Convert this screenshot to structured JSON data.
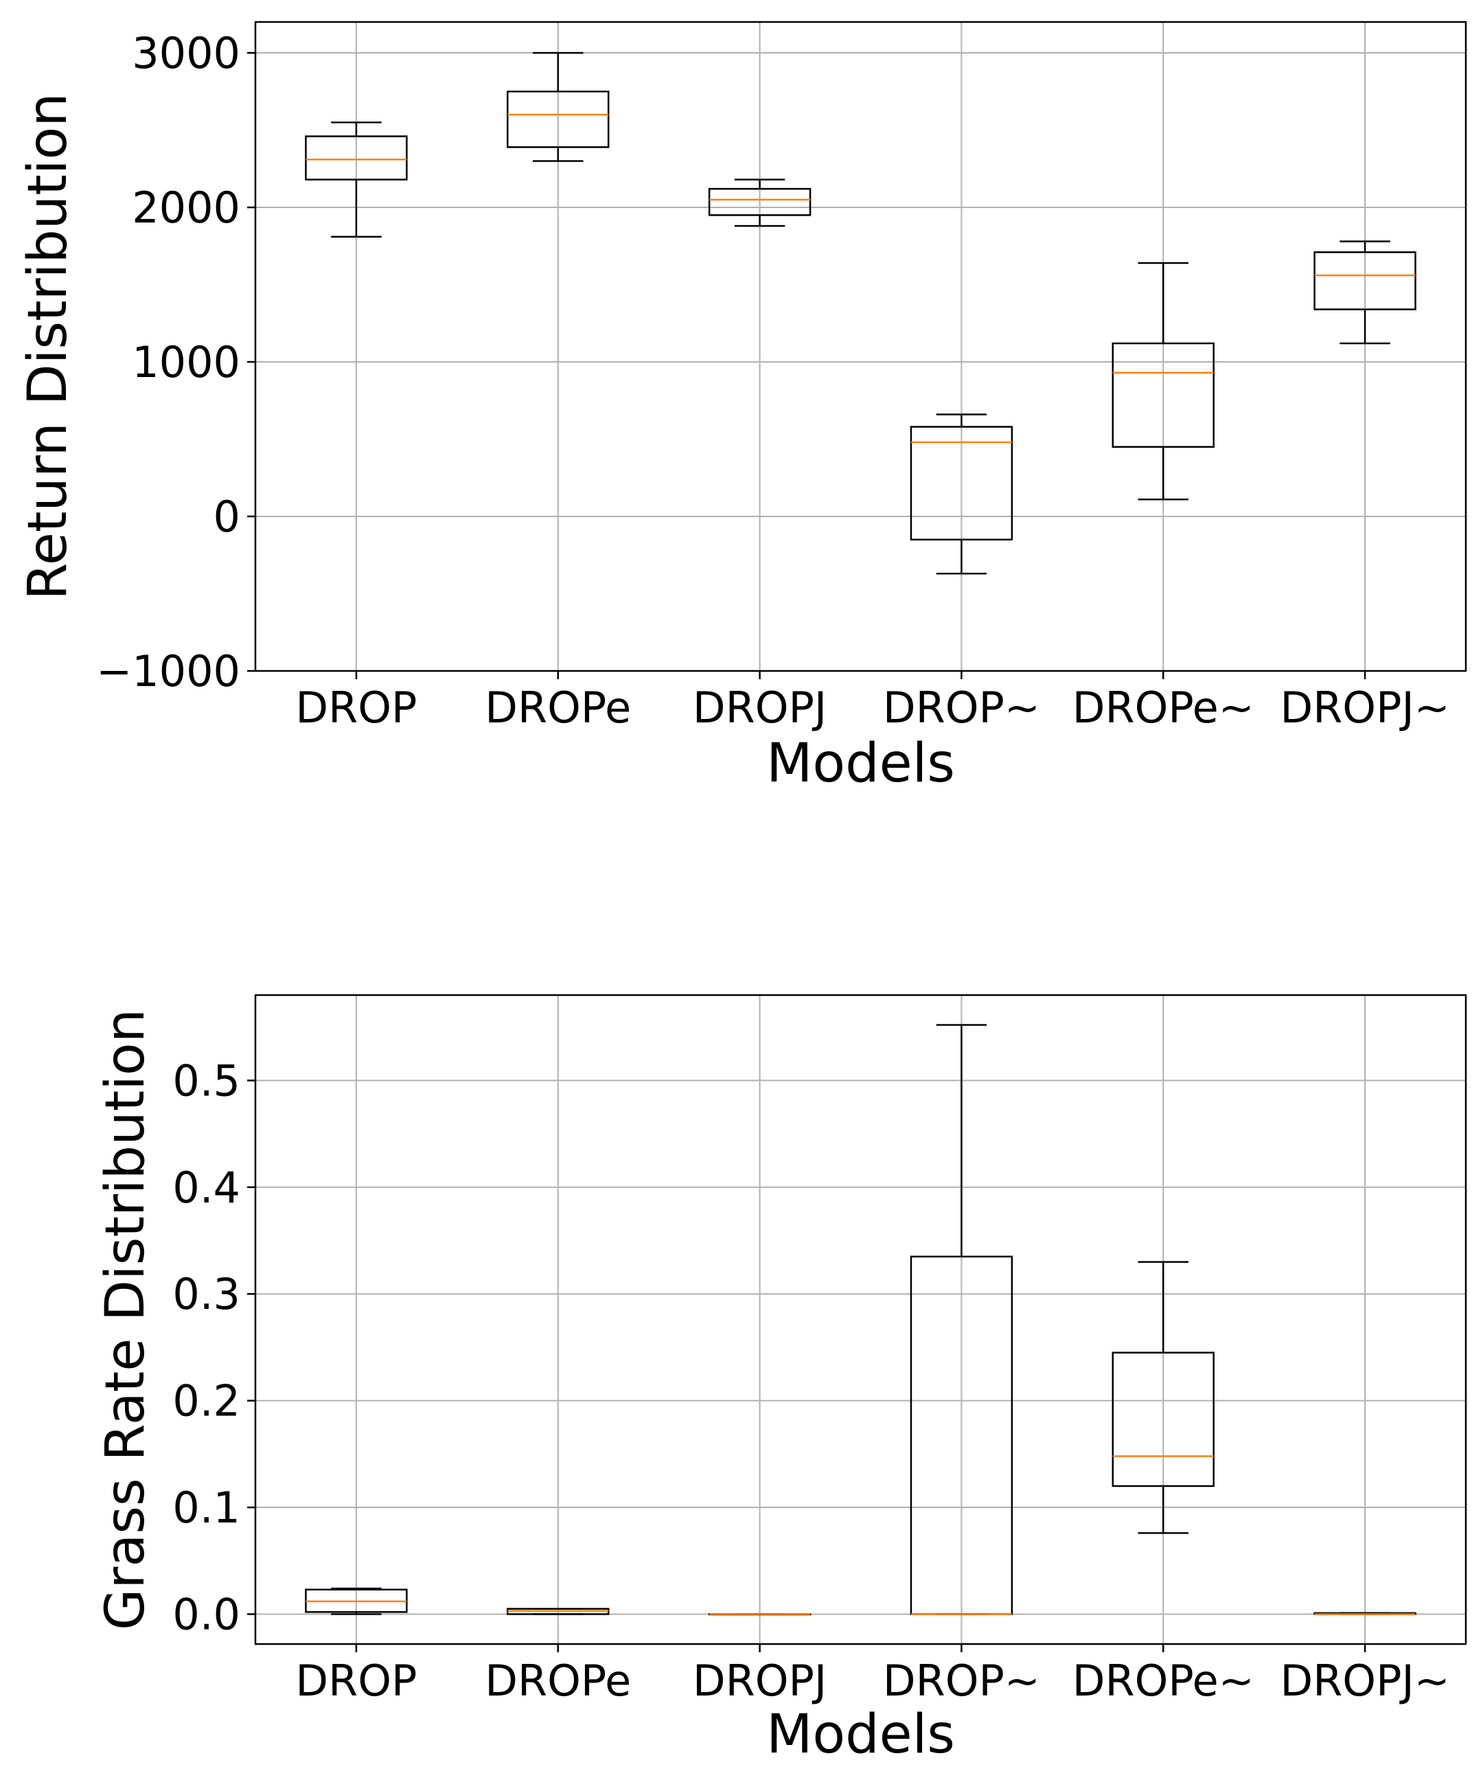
{
  "chart_data": [
    {
      "type": "box",
      "title": "",
      "xlabel": "Models",
      "ylabel": "Return Distribution",
      "categories": [
        "DROP",
        "DROPe",
        "DROPJ",
        "DROP~",
        "DROPe~",
        "DROPJ~"
      ],
      "ylim": [
        -1000,
        3200
      ],
      "yticks": [
        -1000,
        0,
        1000,
        2000,
        3000
      ],
      "ytick_labels": [
        "−1000",
        "0",
        "1000",
        "2000",
        "3000"
      ],
      "grid": true,
      "boxes": [
        {
          "whislo": 1810,
          "q1": 2180,
          "med": 2310,
          "q3": 2460,
          "whishi": 2550
        },
        {
          "whislo": 2300,
          "q1": 2390,
          "med": 2600,
          "q3": 2750,
          "whishi": 3000
        },
        {
          "whislo": 1880,
          "q1": 1950,
          "med": 2050,
          "q3": 2120,
          "whishi": 2180
        },
        {
          "whislo": -370,
          "q1": -150,
          "med": 480,
          "q3": 580,
          "whishi": 660
        },
        {
          "whislo": 110,
          "q1": 450,
          "med": 930,
          "q3": 1120,
          "whishi": 1640
        },
        {
          "whislo": 1120,
          "q1": 1340,
          "med": 1560,
          "q3": 1710,
          "whishi": 1780
        }
      ]
    },
    {
      "type": "box",
      "title": "",
      "xlabel": "Models",
      "ylabel": "Grass Rate Distribution",
      "categories": [
        "DROP",
        "DROPe",
        "DROPJ",
        "DROP~",
        "DROPe~",
        "DROPJ~"
      ],
      "ylim": [
        -0.028,
        0.58
      ],
      "yticks": [
        0.0,
        0.1,
        0.2,
        0.3,
        0.4,
        0.5
      ],
      "ytick_labels": [
        "0.0",
        "0.1",
        "0.2",
        "0.3",
        "0.4",
        "0.5"
      ],
      "grid": true,
      "boxes": [
        {
          "whislo": 0.0,
          "q1": 0.002,
          "med": 0.012,
          "q3": 0.023,
          "whishi": 0.024
        },
        {
          "whislo": 0.0,
          "q1": 0.0,
          "med": 0.003,
          "q3": 0.005,
          "whishi": 0.005
        },
        {
          "whislo": 0.0,
          "q1": 0.0,
          "med": 0.0,
          "q3": 0.0,
          "whishi": 0.0
        },
        {
          "whislo": 0.0,
          "q1": 0.0,
          "med": 0.0,
          "q3": 0.335,
          "whishi": 0.552
        },
        {
          "whislo": 0.076,
          "q1": 0.12,
          "med": 0.148,
          "q3": 0.245,
          "whishi": 0.33
        },
        {
          "whislo": 0.0,
          "q1": 0.0,
          "med": 0.0,
          "q3": 0.001,
          "whishi": 0.001
        }
      ]
    }
  ],
  "colors": {
    "box": "#000000",
    "median": "#ff7f0e",
    "grid": "#b0b0b0"
  }
}
